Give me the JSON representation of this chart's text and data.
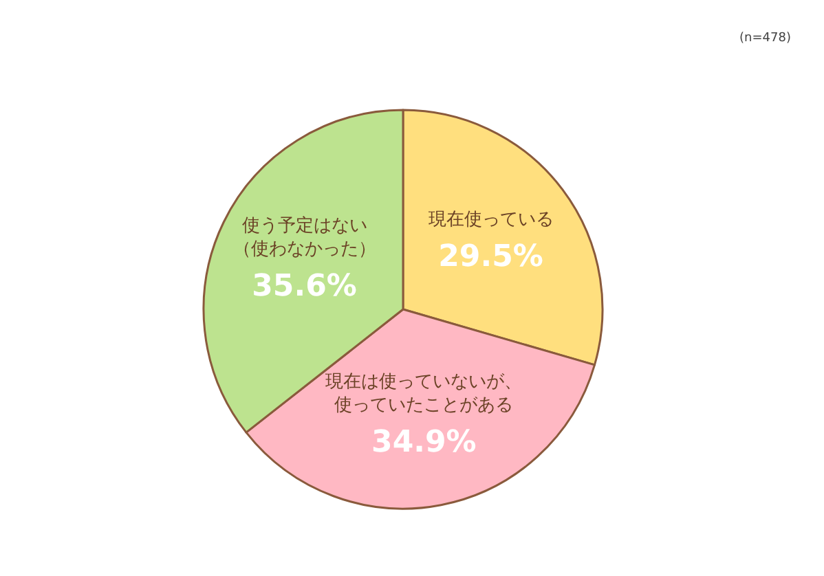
{
  "chart_data": {
    "type": "pie",
    "annotations": [
      "(n=478)"
    ],
    "categories": [
      "現在使っている",
      "現在は使っていないが、使っていたことがある",
      "使う予定はない（使わなかった）"
    ],
    "values": [
      29.5,
      34.9,
      35.6
    ],
    "value_labels": [
      "29.5%",
      "34.9%",
      "35.6%"
    ],
    "colors": [
      "#ffdf7e",
      "#ffb8c3",
      "#bde38f"
    ]
  }
}
